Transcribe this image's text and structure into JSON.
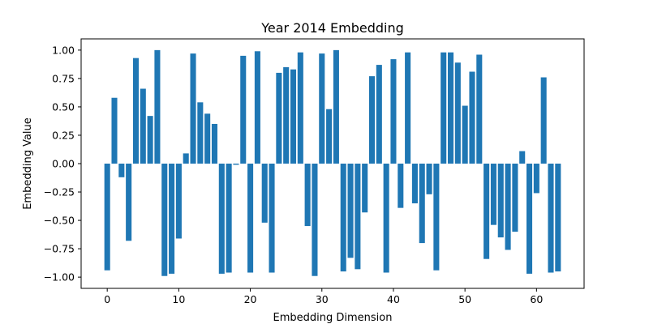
{
  "chart_data": {
    "type": "bar",
    "title": "Year 2014 Embedding",
    "xlabel": "Embedding Dimension",
    "ylabel": "Embedding Value",
    "x": [
      0,
      1,
      2,
      3,
      4,
      5,
      6,
      7,
      8,
      9,
      10,
      11,
      12,
      13,
      14,
      15,
      16,
      17,
      18,
      19,
      20,
      21,
      22,
      23,
      24,
      25,
      26,
      27,
      28,
      29,
      30,
      31,
      32,
      33,
      34,
      35,
      36,
      37,
      38,
      39,
      40,
      41,
      42,
      43,
      44,
      45,
      46,
      47,
      48,
      49,
      50,
      51,
      52,
      53,
      54,
      55,
      56,
      57,
      58,
      59,
      60,
      61,
      62,
      63
    ],
    "values": [
      -0.94,
      0.58,
      -0.12,
      -0.68,
      0.93,
      0.66,
      0.42,
      1.0,
      -0.99,
      -0.97,
      -0.66,
      0.09,
      0.97,
      0.54,
      0.44,
      0.35,
      -0.97,
      -0.96,
      -0.01,
      0.95,
      -0.96,
      0.99,
      -0.52,
      -0.96,
      0.8,
      0.85,
      0.83,
      0.98,
      -0.55,
      -0.99,
      0.97,
      0.48,
      1.0,
      -0.95,
      -0.83,
      -0.93,
      -0.43,
      0.77,
      0.87,
      -0.96,
      0.92,
      -0.39,
      0.98,
      -0.35,
      -0.7,
      -0.27,
      -0.94,
      0.98,
      0.98,
      0.89,
      0.51,
      0.81,
      0.96,
      -0.84,
      -0.54,
      -0.65,
      -0.76,
      -0.6,
      0.11,
      -0.97,
      -0.26,
      0.76,
      -0.96,
      -0.95
    ],
    "xlim": [
      -3.65,
      66.65
    ],
    "ylim": [
      -1.099,
      1.099
    ],
    "xticks": [
      0,
      10,
      20,
      30,
      40,
      50,
      60
    ],
    "yticks": [
      -1.0,
      -0.75,
      -0.5,
      -0.25,
      0.0,
      0.25,
      0.5,
      0.75,
      1.0
    ],
    "ytick_labels": [
      "−1.00",
      "−0.75",
      "−0.50",
      "−0.25",
      "0.00",
      "0.25",
      "0.50",
      "0.75",
      "1.00"
    ],
    "bar_color": "#1f77b4",
    "grid": false,
    "legend": "none"
  }
}
